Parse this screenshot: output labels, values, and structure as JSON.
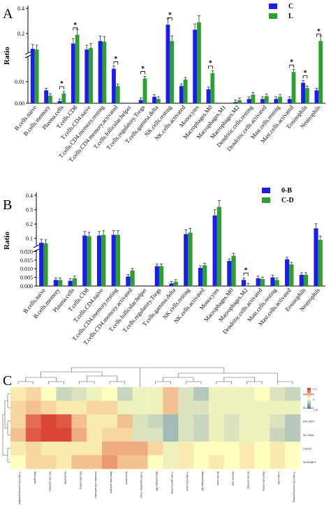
{
  "colors": {
    "c1": "#1c1cf0",
    "c2": "#2ca02c"
  },
  "chart_data": [
    {
      "panel": "A",
      "type": "bar",
      "ylabel": "Ratio",
      "yticks_top": [
        "0.4",
        "0.2"
      ],
      "yticks_bottom": [
        "0.01",
        "0.00"
      ],
      "legend": [
        "C",
        "L"
      ],
      "categories": [
        "B.cells.naive",
        "B.cells.memory",
        "Plasma.cells",
        "T.cells.CD8",
        "T.cells.CD4.naive",
        "T.cells.CD4.memory.resting",
        "T.cells.CD4.memory.activated",
        "T.cells.follicular.helper",
        "T.cells.regulatory.Tregs",
        "T.cells.gamma.delta",
        "NK.cells.resting",
        "NK.cells.activated",
        "Monocytes",
        "Macrophages.M0",
        "Macrophages.M1",
        "Macrophages.M2",
        "Dendritic.cells.resting",
        "Dendritic.cells.activated",
        "Mast.cells.resting",
        "Mast.cells.activated",
        "Eosinophils",
        "Neutrophils"
      ],
      "series": [
        {
          "name": "C",
          "values": [
            0.078,
            0.006,
            0.001,
            0.12,
            0.072,
            0.14,
            0.016,
            0.0,
            0.0015,
            0.003,
            0.27,
            0.008,
            0.23,
            0.0065,
            0.0,
            0.0005,
            0.002,
            0.002,
            0.002,
            0.002,
            0.0095,
            0.006
          ]
        },
        {
          "name": "L",
          "values": [
            0.072,
            0.0035,
            0.0045,
            0.19,
            0.085,
            0.135,
            0.008,
            0.0,
            0.0115,
            0.002,
            0.14,
            0.011,
            0.29,
            0.014,
            0.0,
            0.0014,
            0.004,
            0.0033,
            0.003,
            0.0145,
            0.007,
            0.14
          ]
        }
      ],
      "significant": [
        2,
        3,
        6,
        8,
        10,
        13,
        19,
        20,
        21
      ],
      "sig_mark": "*"
    },
    {
      "panel": "B",
      "type": "bar",
      "ylabel": "Ratio",
      "yticks_top": [
        "0.4",
        "0.3",
        "0.2",
        "0.1"
      ],
      "yticks_bottom": [
        "0.020",
        "0.015",
        "0.010",
        "0.005",
        "0.000"
      ],
      "legend": [
        "0-B",
        "C-D"
      ],
      "categories": [
        "B.cells.naive",
        "B.cells.memory",
        "Plasma.cells",
        "T.cells.CD8",
        "T.cells.CD4.naive",
        "T.cells.CD4.memory.resting",
        "T.cells.CD4.memory.activated",
        "T.cells.follicular.helper",
        "T.cells.regulatory.Tregs",
        "T.cells.gamma.delta",
        "NK.cells.resting",
        "NK.cells.activated",
        "Monocytes",
        "Macrophages.M0",
        "Macrophages.M2",
        "Dendritic.cells.activated",
        "Mast.cells.resting",
        "Mast.cells.activated",
        "Eosinophils",
        "Neutrophils"
      ],
      "series": [
        {
          "name": "0-B",
          "values": [
            0.07,
            0.0035,
            0.003,
            0.12,
            0.12,
            0.125,
            0.0055,
            0.0,
            0.0115,
            0.0015,
            0.13,
            0.0105,
            0.26,
            0.0145,
            0.0035,
            0.0045,
            0.005,
            0.0155,
            0.0065,
            0.17
          ]
        },
        {
          "name": "C-D",
          "values": [
            0.066,
            0.0035,
            0.0045,
            0.115,
            0.125,
            0.125,
            0.009,
            0.0,
            0.0115,
            0.0025,
            0.14,
            0.012,
            0.32,
            0.0175,
            0.0003,
            0.004,
            0.0035,
            0.0125,
            0.0065,
            0.09
          ]
        }
      ],
      "significant": [
        14
      ],
      "sig_mark": "*"
    },
    {
      "panel": "C",
      "type": "heatmap",
      "rows": [
        "HSPA9P4",
        "SLC4A11",
        "RPL7AP4",
        "SLC26A6",
        "CALM1",
        "SELENBP1"
      ],
      "cols": [
        "T.cells.CD4.memory.activated",
        "Monocytes",
        "NK.cells.activated",
        "Neutrophils",
        "NK.cells.resting",
        "Dendritic.cells.activated",
        "Mast.cells.activated",
        "Eosinophils",
        "T.cells.regulatory..Tregs.",
        "Macrophages.M0",
        "T.cells.gamma.delta",
        "T.cells.CD4.naive",
        "Macrophages.M1",
        "B.cells.naive",
        "Plasma.cells",
        "B.cells.memory",
        "Mast.cells.resting",
        "T.cells.CD8",
        "T.cells.CD4.memory.resting"
      ],
      "values": [
        [
          0.1,
          0.2,
          0.0,
          -0.3,
          -0.2,
          -0.1,
          0.0,
          -0.3,
          -0.1,
          -0.1,
          0.3,
          -0.2,
          -0.4,
          -0.1,
          -0.1,
          -0.1,
          0.0,
          -0.2,
          -0.3
        ],
        [
          0.2,
          0.3,
          0.2,
          0.1,
          0.1,
          0.2,
          0.2,
          -0.1,
          -0.1,
          -0.1,
          0.3,
          -0.2,
          -0.2,
          -0.1,
          -0.1,
          -0.1,
          -0.1,
          -0.1,
          -0.1
        ],
        [
          0.2,
          0.7,
          0.9,
          0.8,
          0.3,
          0.1,
          0.1,
          0.3,
          -0.2,
          -0.3,
          -0.5,
          -0.2,
          -0.3,
          -0.1,
          -0.2,
          -0.1,
          -0.1,
          -0.2,
          -0.4
        ],
        [
          0.3,
          0.8,
          0.9,
          0.9,
          0.4,
          0.1,
          0.2,
          0.2,
          -0.2,
          -0.2,
          -0.5,
          -0.2,
          -0.3,
          -0.1,
          -0.2,
          -0.1,
          -0.1,
          -0.3,
          -0.4
        ],
        [
          0.1,
          0.2,
          0.1,
          0.1,
          0.1,
          0.1,
          0.4,
          0.4,
          0.4,
          0.2,
          -0.1,
          0.1,
          0.0,
          0.0,
          0.0,
          0.1,
          0.0,
          0.1,
          0.0
        ],
        [
          0.0,
          0.2,
          0.2,
          0.1,
          0.3,
          0.3,
          0.5,
          0.3,
          0.3,
          0.0,
          -0.1,
          0.1,
          0.0,
          0.1,
          0.0,
          0.1,
          0.0,
          0.1,
          0.0
        ]
      ],
      "colorbar_ticks": [
        "0.5",
        "0",
        "-0.5"
      ],
      "colorbar_colors": [
        "#d73027",
        "#ffffbf",
        "#4575b4"
      ]
    }
  ]
}
